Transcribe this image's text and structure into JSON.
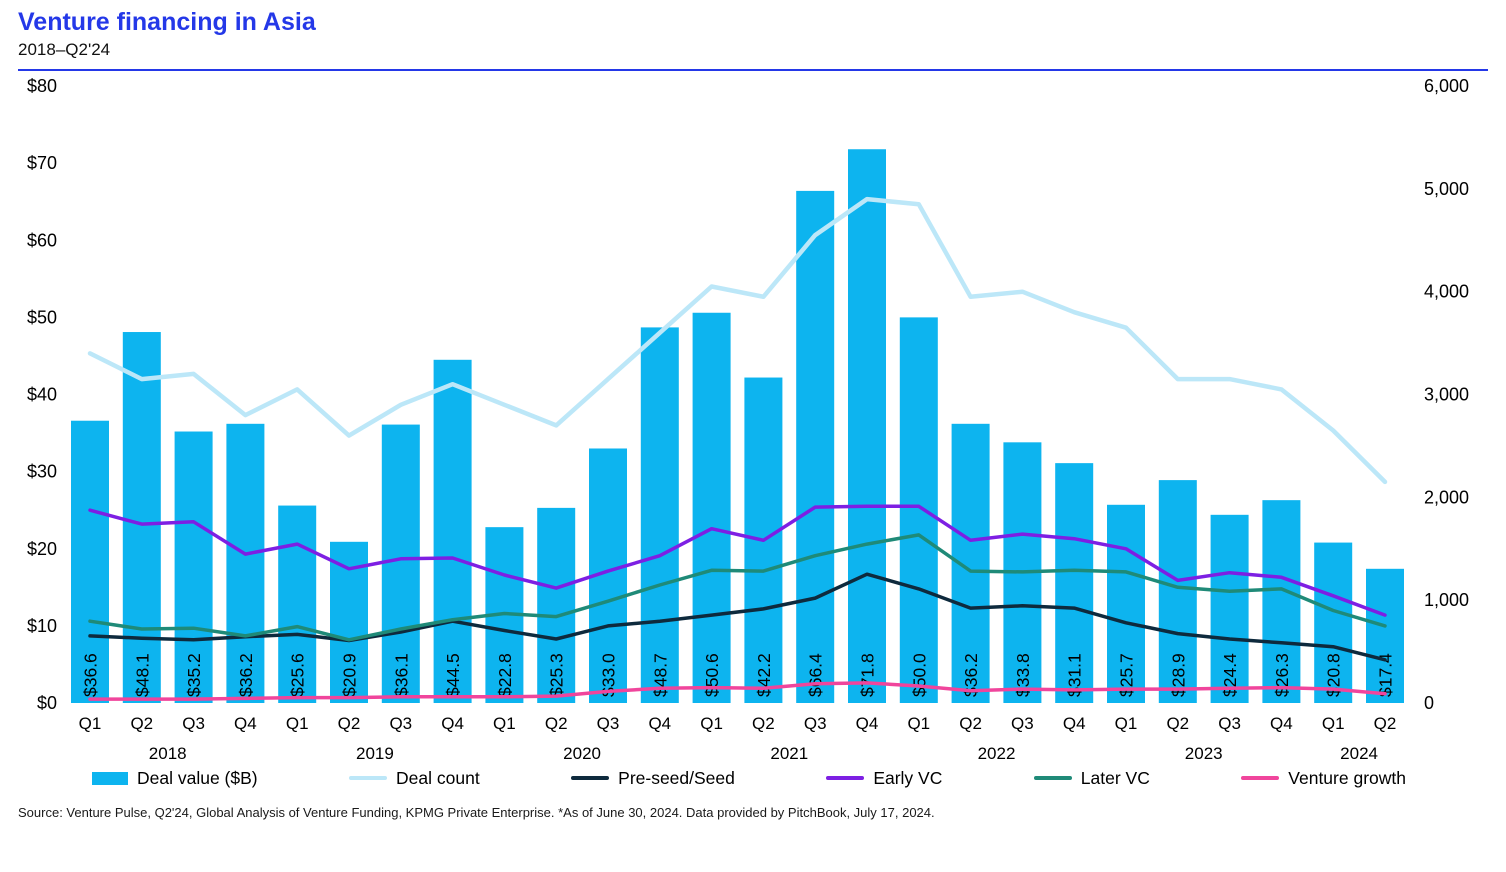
{
  "header": {
    "title": "Venture financing in Asia",
    "subtitle": "2018–Q2'24"
  },
  "chart_data": {
    "type": "bar+line combo",
    "quarters": [
      "Q1",
      "Q2",
      "Q3",
      "Q4",
      "Q1",
      "Q2",
      "Q3",
      "Q4",
      "Q1",
      "Q2",
      "Q3",
      "Q4",
      "Q1",
      "Q2",
      "Q3",
      "Q4",
      "Q1",
      "Q2",
      "Q3",
      "Q4",
      "Q1",
      "Q2",
      "Q3",
      "Q4",
      "Q1",
      "Q2"
    ],
    "year_groups": [
      {
        "label": "2018",
        "count": 4
      },
      {
        "label": "2019",
        "count": 4
      },
      {
        "label": "2020",
        "count": 4
      },
      {
        "label": "2021",
        "count": 4
      },
      {
        "label": "2022",
        "count": 4
      },
      {
        "label": "2023",
        "count": 4
      },
      {
        "label": "2024",
        "count": 2
      }
    ],
    "bar_series": {
      "name": "Deal value ($B)",
      "color": "#0db4ef",
      "axis": "left",
      "values": [
        36.6,
        48.1,
        35.2,
        36.2,
        25.6,
        20.9,
        36.1,
        44.5,
        22.8,
        25.3,
        33.0,
        48.7,
        50.6,
        42.2,
        66.4,
        71.8,
        50.0,
        36.2,
        33.8,
        31.1,
        25.7,
        28.9,
        24.4,
        26.3,
        20.8,
        17.4
      ]
    },
    "line_series": [
      {
        "name": "Deal count",
        "axis": "right",
        "color": "#bce7f8",
        "width": 4.5,
        "values": [
          3400,
          3150,
          3200,
          2800,
          3050,
          2600,
          2900,
          3100,
          2900,
          2700,
          3150,
          3600,
          4050,
          3950,
          4550,
          4900,
          4850,
          3950,
          4000,
          3800,
          3650,
          3150,
          3150,
          3050,
          2650,
          2150
        ]
      },
      {
        "name": "Pre-seed/Seed",
        "axis": "left",
        "color": "#0e2a3d",
        "width": 3.5,
        "values": [
          8.7,
          8.4,
          8.2,
          8.6,
          8.9,
          8.1,
          9.2,
          10.6,
          9.4,
          8.3,
          10.0,
          10.6,
          11.4,
          12.2,
          13.6,
          16.7,
          14.8,
          12.3,
          12.6,
          12.3,
          10.4,
          9.0,
          8.3,
          7.8,
          7.3,
          5.6
        ]
      },
      {
        "name": "Early VC",
        "axis": "left",
        "color": "#7d1fe3",
        "width": 3.5,
        "values": [
          25.0,
          23.2,
          23.5,
          19.3,
          20.6,
          17.4,
          18.7,
          18.8,
          16.6,
          14.9,
          17.1,
          19.1,
          22.6,
          21.1,
          25.4,
          25.5,
          25.5,
          21.1,
          21.9,
          21.3,
          20.0,
          15.9,
          16.9,
          16.3,
          13.9,
          11.4
        ]
      },
      {
        "name": "Later VC",
        "axis": "left",
        "color": "#1f8a78",
        "width": 3.5,
        "values": [
          10.6,
          9.6,
          9.7,
          8.7,
          9.9,
          8.2,
          9.6,
          10.8,
          11.6,
          11.2,
          13.2,
          15.3,
          17.2,
          17.1,
          19.1,
          20.6,
          21.8,
          17.1,
          17.0,
          17.2,
          17.0,
          15.0,
          14.5,
          14.8,
          12.0,
          10.0
        ]
      },
      {
        "name": "Venture growth",
        "axis": "left",
        "color": "#f0459c",
        "width": 3.5,
        "values": [
          0.5,
          0.5,
          0.5,
          0.6,
          0.7,
          0.7,
          0.8,
          0.8,
          0.8,
          0.9,
          1.5,
          1.9,
          2.0,
          1.9,
          2.5,
          2.6,
          2.2,
          1.6,
          1.8,
          1.7,
          1.8,
          1.8,
          1.9,
          2.0,
          1.8,
          1.2
        ]
      }
    ],
    "left_axis": {
      "min": 0,
      "max": 80,
      "step": 10,
      "prefix": "$",
      "tick_labels": [
        "$0",
        "$10",
        "$20",
        "$30",
        "$40",
        "$50",
        "$60",
        "$70",
        "$80"
      ]
    },
    "right_axis": {
      "min": 0,
      "max": 6000,
      "step": 1000,
      "tick_labels": [
        "0",
        "1,000",
        "2,000",
        "3,000",
        "4,000",
        "5,000",
        "6,000"
      ]
    },
    "grid": false,
    "legend_position": "bottom",
    "bar_label_color": "#000000"
  },
  "source": "Source: Venture Pulse, Q2'24, Global Analysis of Venture Funding, KPMG Private Enterprise. *As of June 30, 2024. Data provided by PitchBook, July 17, 2024."
}
